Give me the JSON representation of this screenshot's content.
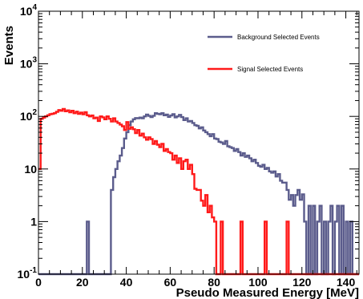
{
  "chart_data": {
    "type": "line",
    "xlabel": "Pseudo Measured Energy [MeV]",
    "ylabel": "Events",
    "xlim": [
      0,
      146
    ],
    "ylim": [
      0.1,
      10000
    ],
    "y_scale": "log",
    "grid": false,
    "legend_placement": "top-right",
    "x_ticks": [
      0,
      20,
      40,
      60,
      80,
      100,
      120,
      140
    ],
    "x_tick_labels": [
      "0",
      "20",
      "40",
      "60",
      "80",
      "100",
      "120",
      "140"
    ],
    "y_ticks": [
      0.1,
      1,
      10,
      100,
      1000,
      10000
    ],
    "y_tick_labels": [
      {
        "base": "10",
        "exp": "-1"
      },
      {
        "base": "1",
        "exp": ""
      },
      {
        "base": "10",
        "exp": ""
      },
      {
        "base": "10",
        "exp": "2"
      },
      {
        "base": "10",
        "exp": "3"
      },
      {
        "base": "10",
        "exp": "4"
      }
    ],
    "series": [
      {
        "name": "Background Selected Events",
        "color": "#5b5c8c",
        "x": [
          0,
          22,
          23,
          33,
          34,
          35,
          36,
          37,
          38,
          39,
          40,
          41,
          42,
          43,
          44,
          45,
          46,
          47,
          48,
          49,
          50,
          51,
          52,
          53,
          54,
          55,
          56,
          57,
          58,
          59,
          60,
          61,
          62,
          63,
          64,
          65,
          66,
          67,
          68,
          69,
          70,
          71,
          72,
          73,
          74,
          75,
          76,
          77,
          78,
          79,
          80,
          81,
          82,
          83,
          84,
          85,
          86,
          87,
          88,
          89,
          90,
          91,
          92,
          93,
          94,
          95,
          96,
          97,
          98,
          99,
          100,
          101,
          102,
          103,
          104,
          105,
          106,
          107,
          108,
          109,
          110,
          111,
          112,
          113,
          114,
          115,
          116,
          117,
          118,
          119,
          120,
          121,
          122,
          123,
          124,
          125,
          126,
          127,
          128,
          129,
          130,
          131,
          132,
          133,
          134,
          135,
          136,
          137,
          138,
          139,
          140,
          141,
          142,
          143,
          144,
          145,
          146
        ],
        "values": [
          0.1,
          1,
          0.1,
          4,
          7,
          10,
          14,
          18,
          25,
          38,
          50,
          68,
          80,
          88,
          93,
          92,
          95,
          92,
          100,
          108,
          102,
          97,
          103,
          115,
          112,
          110,
          115,
          105,
          108,
          98,
          104,
          110,
          96,
          100,
          107,
          97,
          85,
          92,
          80,
          82,
          75,
          68,
          66,
          59,
          62,
          54,
          50,
          46,
          42,
          46,
          38,
          37,
          33,
          32,
          30,
          34,
          27,
          26,
          25,
          22,
          24,
          21,
          18,
          20,
          17,
          18,
          16,
          14,
          15,
          13,
          11.5,
          11,
          12,
          10,
          10.5,
          9,
          8.5,
          9,
          7.2,
          8,
          6,
          5.5,
          5.5,
          4,
          2.6,
          3.2,
          2,
          3.2,
          4,
          2.6,
          3.3,
          1,
          0.1,
          2,
          0.1,
          2,
          0.1,
          1,
          2,
          0.1,
          1,
          0.1,
          1,
          2,
          0.1,
          1,
          2,
          0.1,
          2,
          0.1,
          1,
          0.1,
          1,
          0.1,
          0.1,
          0.1,
          0.1
        ]
      },
      {
        "name": "Signal Selected Events",
        "color": "#ff1a1a",
        "x": [
          0,
          1,
          2,
          3,
          4,
          5,
          6,
          7,
          8,
          9,
          10,
          11,
          12,
          13,
          14,
          15,
          16,
          17,
          18,
          19,
          20,
          21,
          22,
          23,
          24,
          25,
          26,
          27,
          28,
          29,
          30,
          31,
          32,
          33,
          34,
          35,
          36,
          37,
          38,
          39,
          40,
          41,
          42,
          43,
          44,
          45,
          46,
          47,
          48,
          49,
          50,
          51,
          52,
          53,
          54,
          55,
          56,
          57,
          58,
          59,
          60,
          61,
          62,
          63,
          64,
          65,
          66,
          67,
          68,
          69,
          70,
          71,
          72,
          73,
          74,
          75,
          76,
          77,
          78,
          79,
          80,
          81,
          82,
          83,
          84,
          85,
          86,
          87,
          88,
          89,
          90,
          91,
          92,
          93,
          94,
          95,
          96,
          97,
          98,
          99,
          100,
          101,
          102,
          103,
          104,
          105,
          106,
          107,
          108,
          109,
          110,
          111,
          112,
          113,
          114,
          115,
          116,
          117,
          118,
          146
        ],
        "values": [
          10,
          90,
          95,
          100,
          105,
          110,
          112,
          115,
          122,
          132,
          128,
          138,
          125,
          130,
          120,
          128,
          115,
          123,
          112,
          118,
          110,
          120,
          105,
          100,
          104,
          92,
          95,
          82,
          100,
          96,
          88,
          100,
          90,
          80,
          92,
          80,
          75,
          70,
          65,
          55,
          78,
          58,
          62,
          57,
          48,
          55,
          43,
          47,
          40,
          36,
          40,
          37,
          30,
          34,
          29,
          26,
          30,
          22,
          24,
          21,
          20,
          15,
          18,
          13,
          16,
          10,
          14,
          15,
          10,
          12,
          8,
          4.2,
          4,
          4,
          2.5,
          2,
          3.2,
          1.5,
          2,
          1.2,
          1,
          0.1,
          0.1,
          1,
          0.1,
          0.1,
          0.1,
          0.1,
          0.1,
          0.1,
          0.1,
          0.1,
          1,
          0.1,
          0.1,
          0.1,
          0.1,
          0.1,
          0.1,
          0.1,
          0.1,
          0.1,
          0.1,
          1,
          0.1,
          0.1,
          0.1,
          0.1,
          0.1,
          0.1,
          0.1,
          0.1,
          0.1,
          1,
          0.1,
          0.1,
          0.1,
          0.1,
          0.1,
          0.1
        ]
      }
    ]
  }
}
